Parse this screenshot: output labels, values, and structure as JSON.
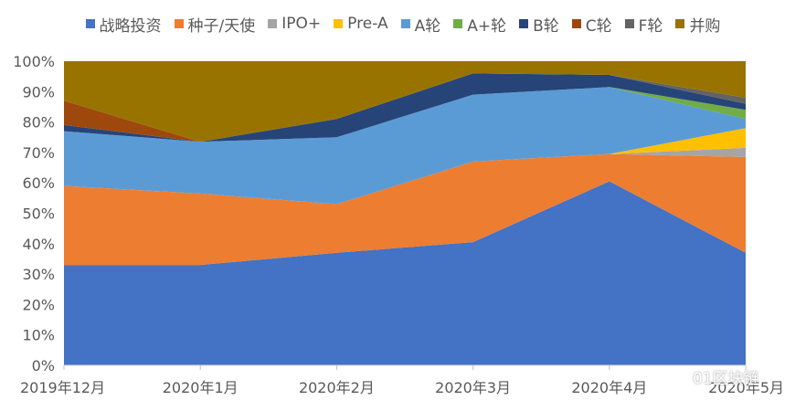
{
  "watermark": {
    "text": "01区块链",
    "icon": "wechat-icon"
  },
  "chart_data": {
    "type": "area",
    "stacked": true,
    "percent": true,
    "x": [
      "2019年12月",
      "2020年1月",
      "2020年2月",
      "2020年3月",
      "2020年4月",
      "2020年5月"
    ],
    "ylim": [
      0,
      100
    ],
    "yticks": [
      "0%",
      "10%",
      "20%",
      "30%",
      "40%",
      "50%",
      "60%",
      "70%",
      "80%",
      "90%",
      "100%"
    ],
    "legend_position": "top",
    "grid": false,
    "series": [
      {
        "name": "战略投资",
        "color": "#4472C4",
        "values": [
          33,
          33,
          37,
          40.5,
          60.5,
          37
        ]
      },
      {
        "name": "种子/天使",
        "color": "#ED7D31",
        "values": [
          26,
          23.5,
          16,
          26.5,
          9,
          31.5
        ]
      },
      {
        "name": "IPO+",
        "color": "#A5A5A5",
        "values": [
          0,
          0,
          0,
          0,
          0,
          3
        ]
      },
      {
        "name": "Pre-A",
        "color": "#FFC000",
        "values": [
          0,
          0,
          0,
          0,
          0,
          6.5
        ]
      },
      {
        "name": "A轮",
        "color": "#5B9BD5",
        "values": [
          18,
          17,
          22,
          22,
          22,
          3
        ]
      },
      {
        "name": "A+轮",
        "color": "#70AD47",
        "values": [
          0,
          0,
          0,
          0,
          0,
          3
        ]
      },
      {
        "name": "B轮",
        "color": "#264478",
        "values": [
          2,
          0,
          6,
          7,
          4,
          2
        ]
      },
      {
        "name": "C轮",
        "color": "#9E480E",
        "values": [
          8,
          0,
          0,
          0,
          0,
          0
        ]
      },
      {
        "name": "F轮",
        "color": "#636363",
        "values": [
          0,
          0,
          0,
          0,
          0,
          2
        ]
      },
      {
        "name": "并购",
        "color": "#997300",
        "values": [
          13,
          26.5,
          19,
          4,
          4.5,
          12
        ]
      }
    ]
  }
}
